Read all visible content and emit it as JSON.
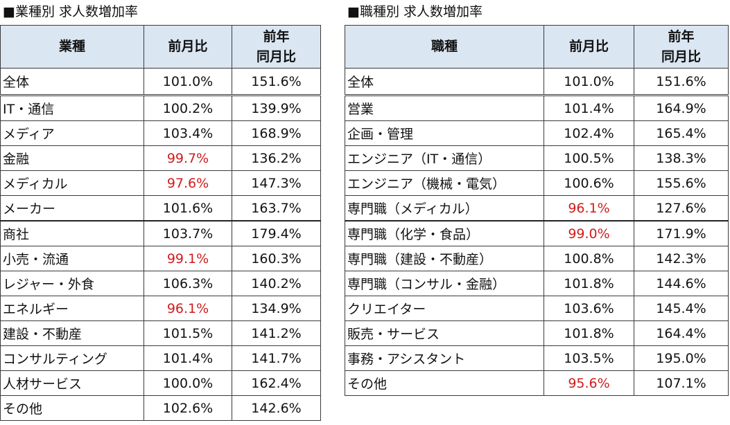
{
  "industry": {
    "title": "■業種別 求人数増加率",
    "headers": {
      "name": "業種",
      "mom": "前月比",
      "yoy_line1": "前年",
      "yoy_line2": "同月比"
    },
    "rows": [
      {
        "name": "全体",
        "mom": "101.0%",
        "yoy": "151.6%"
      },
      {
        "name": "IT・通信",
        "mom": "100.2%",
        "yoy": "139.9%"
      },
      {
        "name": "メディア",
        "mom": "103.4%",
        "yoy": "168.9%"
      },
      {
        "name": "金融",
        "mom": "99.7%",
        "yoy": "136.2%"
      },
      {
        "name": "メディカル",
        "mom": "97.6%",
        "yoy": "147.3%"
      },
      {
        "name": "メーカー",
        "mom": "101.6%",
        "yoy": "163.7%"
      },
      {
        "name": "商社",
        "mom": "103.7%",
        "yoy": "179.4%"
      },
      {
        "name": "小売・流通",
        "mom": "99.1%",
        "yoy": "160.3%"
      },
      {
        "name": "レジャー・外食",
        "mom": "106.3%",
        "yoy": "140.2%"
      },
      {
        "name": "エネルギー",
        "mom": "96.1%",
        "yoy": "134.9%"
      },
      {
        "name": "建設・不動産",
        "mom": "101.5%",
        "yoy": "141.2%"
      },
      {
        "name": "コンサルティング",
        "mom": "101.4%",
        "yoy": "141.7%"
      },
      {
        "name": "人材サービス",
        "mom": "100.0%",
        "yoy": "162.4%"
      },
      {
        "name": "その他",
        "mom": "102.6%",
        "yoy": "142.6%"
      }
    ]
  },
  "occupation": {
    "title": "■職種別 求人数増加率",
    "headers": {
      "name": "職種",
      "mom": "前月比",
      "yoy_line1": "前年",
      "yoy_line2": "同月比"
    },
    "rows": [
      {
        "name": "全体",
        "mom": "101.0%",
        "yoy": "151.6%"
      },
      {
        "name": "営業",
        "mom": "101.4%",
        "yoy": "164.9%"
      },
      {
        "name": "企画・管理",
        "mom": "102.4%",
        "yoy": "165.4%"
      },
      {
        "name": "エンジニア（IT・通信）",
        "mom": "100.5%",
        "yoy": "138.3%"
      },
      {
        "name": "エンジニア（機械・電気）",
        "mom": "100.6%",
        "yoy": "155.6%"
      },
      {
        "name": "専門職（メディカル）",
        "mom": "96.1%",
        "yoy": "127.6%"
      },
      {
        "name": "専門職（化学・食品）",
        "mom": "99.0%",
        "yoy": "171.9%"
      },
      {
        "name": "専門職（建設・不動産）",
        "mom": "100.8%",
        "yoy": "142.3%"
      },
      {
        "name": "専門職（コンサル・金融）",
        "mom": "101.8%",
        "yoy": "144.6%"
      },
      {
        "name": "クリエイター",
        "mom": "103.6%",
        "yoy": "145.4%"
      },
      {
        "name": "販売・サービス",
        "mom": "101.8%",
        "yoy": "164.4%"
      },
      {
        "name": "事務・アシスタント",
        "mom": "103.5%",
        "yoy": "195.0%"
      },
      {
        "name": "その他",
        "mom": "95.6%",
        "yoy": "107.1%"
      }
    ]
  },
  "colors": {
    "negative": "#d01c1c",
    "header_bg": "#dae6f2"
  }
}
